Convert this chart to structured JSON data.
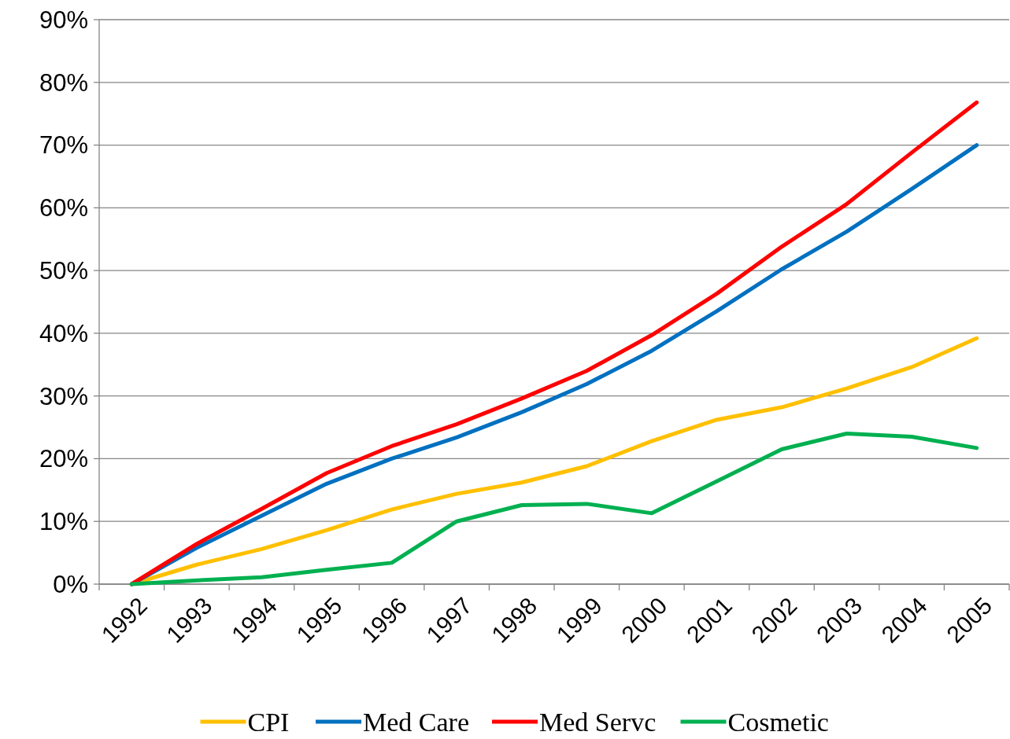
{
  "chart_data": {
    "type": "line",
    "categories": [
      "1992",
      "1993",
      "1994",
      "1995",
      "1996",
      "1997",
      "1998",
      "1999",
      "2000",
      "2001",
      "2002",
      "2003",
      "2004",
      "2005"
    ],
    "series": [
      {
        "name": "CPI",
        "color": "#ffc000",
        "values": [
          0,
          3.1,
          5.6,
          8.6,
          11.9,
          14.4,
          16.2,
          18.8,
          22.8,
          26.2,
          28.2,
          31.2,
          34.6,
          39.2
        ]
      },
      {
        "name": "Med Care",
        "color": "#0070c0",
        "values": [
          0,
          5.8,
          10.9,
          16.0,
          20.0,
          23.4,
          27.4,
          31.9,
          37.2,
          43.5,
          50.2,
          56.2,
          63.0,
          70.0
        ]
      },
      {
        "name": "Med Servc",
        "color": "#ff0000",
        "values": [
          0,
          6.4,
          12.0,
          17.7,
          22.0,
          25.5,
          29.6,
          34.0,
          39.7,
          46.3,
          53.8,
          60.6,
          68.8,
          76.8
        ]
      },
      {
        "name": "Cosmetic",
        "color": "#00b050",
        "values": [
          0,
          0.6,
          1.1,
          2.3,
          3.4,
          10.0,
          12.6,
          12.8,
          11.3,
          16.4,
          21.5,
          24.0,
          23.5,
          21.7
        ]
      }
    ],
    "ylim": [
      0,
      90
    ],
    "yticks": [
      {
        "value": 0,
        "label": "0%"
      },
      {
        "value": 10,
        "label": "10%"
      },
      {
        "value": 20,
        "label": "20%"
      },
      {
        "value": 30,
        "label": "30%"
      },
      {
        "value": 40,
        "label": "40%"
      },
      {
        "value": 50,
        "label": "50%"
      },
      {
        "value": 60,
        "label": "60%"
      },
      {
        "value": 70,
        "label": "70%"
      },
      {
        "value": 80,
        "label": "80%"
      },
      {
        "value": 90,
        "label": "90%"
      }
    ],
    "grid": "y",
    "legend": "bottom",
    "marker": "none",
    "line_style": "solid"
  }
}
